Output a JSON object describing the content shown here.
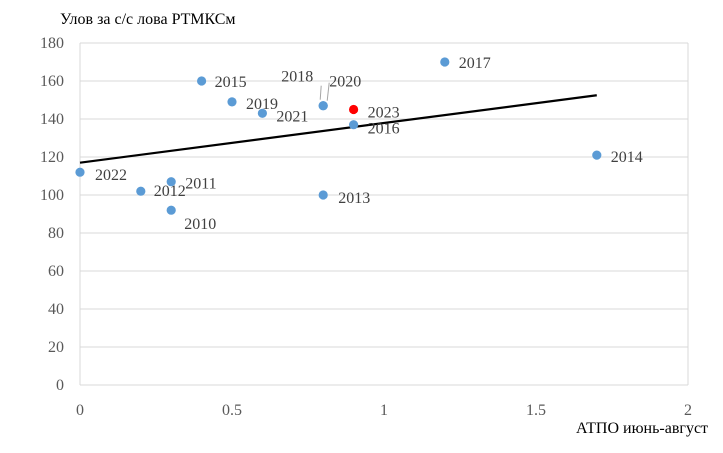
{
  "chart_data": {
    "type": "scatter",
    "ylabel": "Улов за с/с лова РТМКСм",
    "xlabel": "АТПО июнь-август",
    "xlim": [
      0,
      2
    ],
    "ylim": [
      0,
      180
    ],
    "x_ticks": [
      "0",
      "0.5",
      "1",
      "1.5",
      "2"
    ],
    "y_ticks": [
      "0",
      "20",
      "40",
      "60",
      "80",
      "100",
      "120",
      "140",
      "160",
      "180"
    ],
    "grid": "horizontal",
    "points": [
      {
        "label": "2010",
        "x": 0.3,
        "y": 92
      },
      {
        "label": "2011",
        "x": 0.3,
        "y": 107
      },
      {
        "label": "2012",
        "x": 0.2,
        "y": 102
      },
      {
        "label": "2013",
        "x": 0.8,
        "y": 100
      },
      {
        "label": "2014",
        "x": 1.7,
        "y": 121
      },
      {
        "label": "2015",
        "x": 0.4,
        "y": 160
      },
      {
        "label": "2016",
        "x": 0.9,
        "y": 137
      },
      {
        "label": "2017",
        "x": 1.2,
        "y": 170
      },
      {
        "label": "2018",
        "x": 0.8,
        "y": 147
      },
      {
        "label": "2019",
        "x": 0.5,
        "y": 149
      },
      {
        "label": "2020",
        "x": 0.8,
        "y": 147
      },
      {
        "label": "2021",
        "x": 0.6,
        "y": 143
      },
      {
        "label": "2022",
        "x": 0.0,
        "y": 112
      },
      {
        "label": "2023",
        "x": 0.9,
        "y": 145,
        "highlight": true
      }
    ],
    "trendline": {
      "x": [
        0,
        1.7
      ],
      "y": [
        117,
        152.5
      ]
    },
    "colors": {
      "point": "#5b9bd5",
      "highlight": "#ff0000",
      "trend": "#000000"
    }
  }
}
